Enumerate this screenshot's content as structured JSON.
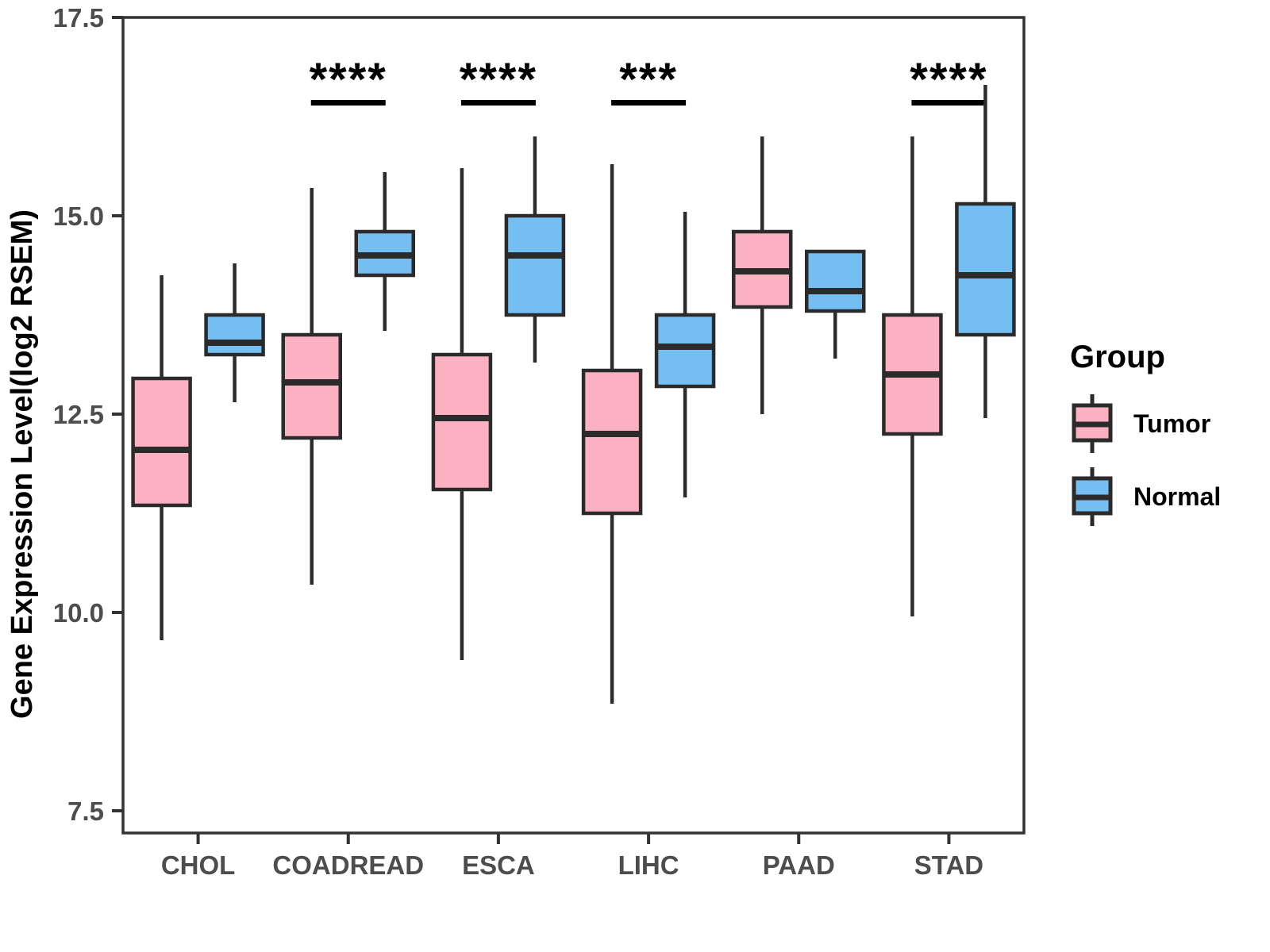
{
  "chart_data": {
    "type": "box",
    "title": "",
    "xlabel": "",
    "ylabel": "Gene Expression Level(log2 RSEM)",
    "ylim": [
      7.22,
      17.5
    ],
    "ytick_values": [
      7.5,
      10.0,
      12.5,
      15.0,
      17.5
    ],
    "ytick_labels": [
      "7.5",
      "10.0",
      "12.5",
      "15.0",
      "17.5"
    ],
    "categories": [
      "CHOL",
      "COADREAD",
      "ESCA",
      "LIHC",
      "PAAD",
      "STAD"
    ],
    "significance": [
      "",
      "****",
      "****",
      "***",
      "",
      "****"
    ],
    "series": [
      {
        "name": "Tumor",
        "color": "#FBB1C1",
        "boxes": [
          {
            "min": 9.65,
            "q1": 11.35,
            "median": 12.05,
            "q3": 12.95,
            "max": 14.25
          },
          {
            "min": 10.35,
            "q1": 12.2,
            "median": 12.9,
            "q3": 13.5,
            "max": 15.35
          },
          {
            "min": 9.4,
            "q1": 11.55,
            "median": 12.45,
            "q3": 13.25,
            "max": 15.6
          },
          {
            "min": 8.85,
            "q1": 11.25,
            "median": 12.25,
            "q3": 13.05,
            "max": 15.65
          },
          {
            "min": 12.5,
            "q1": 13.85,
            "median": 14.3,
            "q3": 14.8,
            "max": 16.0
          },
          {
            "min": 9.95,
            "q1": 12.25,
            "median": 13.0,
            "q3": 13.75,
            "max": 16.0
          }
        ]
      },
      {
        "name": "Normal",
        "color": "#74BEF2",
        "boxes": [
          {
            "min": 12.65,
            "q1": 13.25,
            "median": 13.4,
            "q3": 13.75,
            "max": 14.4
          },
          {
            "min": 13.55,
            "q1": 14.25,
            "median": 14.5,
            "q3": 14.8,
            "max": 15.55
          },
          {
            "min": 13.15,
            "q1": 13.75,
            "median": 14.5,
            "q3": 15.0,
            "max": 16.0
          },
          {
            "min": 11.45,
            "q1": 12.85,
            "median": 13.35,
            "q3": 13.75,
            "max": 15.05
          },
          {
            "min": 13.2,
            "q1": 13.8,
            "median": 14.05,
            "q3": 14.55,
            "max": 14.55
          },
          {
            "min": 12.45,
            "q1": 13.5,
            "median": 14.25,
            "q3": 15.15,
            "max": 16.65
          }
        ]
      }
    ],
    "legend": {
      "title": "Group",
      "position": "right",
      "entries": [
        {
          "label": "Tumor",
          "color": "#FBB1C1"
        },
        {
          "label": "Normal",
          "color": "#74BEF2"
        }
      ]
    },
    "styles": {
      "box_stroke": "#2B2B2B",
      "axis_color": "#333333",
      "panel_background": "#FFFFFF"
    }
  }
}
